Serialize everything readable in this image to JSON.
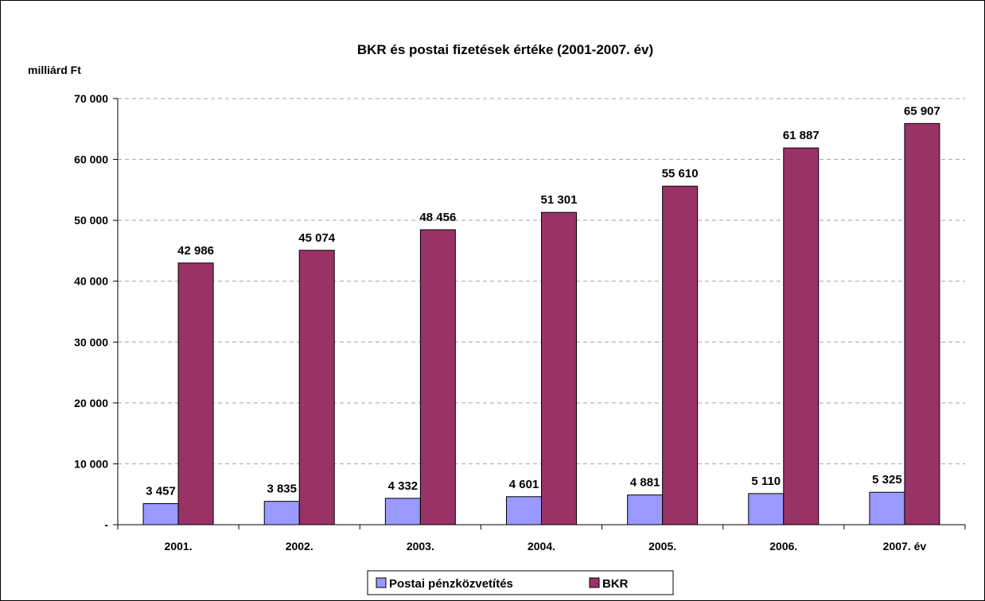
{
  "chart_data": {
    "type": "bar",
    "title": "BKR és postai fizetések értéke (2001-2007. év)",
    "ylabel": "milliárd Ft",
    "xlabel": "",
    "categories": [
      "2001.",
      "2002.",
      "2003.",
      "2004.",
      "2005.",
      "2006.",
      "2007. év"
    ],
    "series": [
      {
        "name": "Postai pénzközvetítés",
        "values": [
          3457,
          3835,
          4332,
          4601,
          4881,
          5110,
          5325
        ],
        "labels": [
          "3 457",
          "3 835",
          "4 332",
          "4 601",
          "4 881",
          "5 110",
          "5 325"
        ],
        "color": "#9999ff"
      },
      {
        "name": "BKR",
        "values": [
          42986,
          45074,
          48456,
          51301,
          55610,
          61887,
          65907
        ],
        "labels": [
          "42 986",
          "45 074",
          "48 456",
          "51 301",
          "55 610",
          "61 887",
          "65 907"
        ],
        "color": "#993366"
      }
    ],
    "ylim": [
      0,
      70000
    ],
    "yticks": [
      0,
      10000,
      20000,
      30000,
      40000,
      50000,
      60000,
      70000
    ],
    "ytick_labels": [
      "-",
      "10 000",
      "20 000",
      "30 000",
      "40 000",
      "50 000",
      "60 000",
      "70 000"
    ],
    "grid": true,
    "legend": "bottom"
  }
}
